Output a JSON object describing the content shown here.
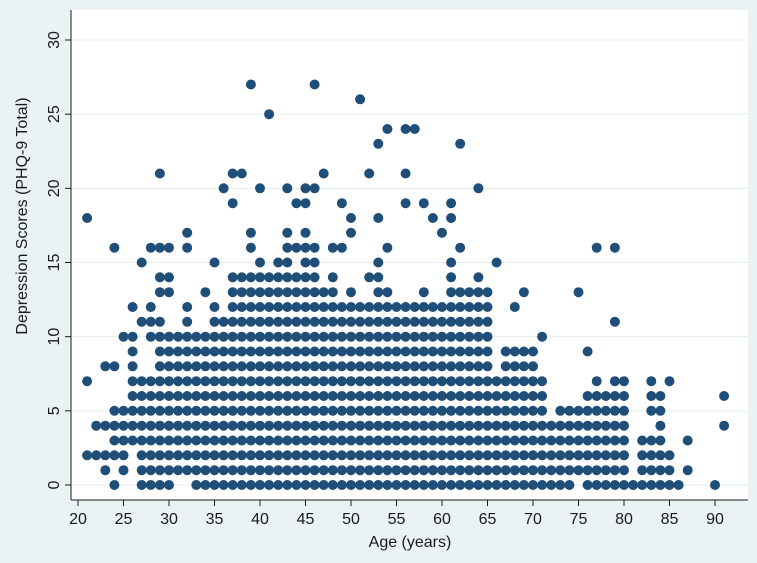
{
  "colors": {
    "background": "#eaf2f3",
    "plot_background": "#ffffff",
    "grid": "#e4ecee",
    "marker": "#1f4e79",
    "axis": "#1a1a1a"
  },
  "chart_data": {
    "type": "scatter",
    "title": "",
    "xlabel": "Age (years)",
    "ylabel": "Depression Scores (PHQ-9 Total)",
    "xlim": [
      20,
      91
    ],
    "ylim": [
      0,
      30
    ],
    "xticks": [
      20,
      25,
      30,
      35,
      40,
      45,
      50,
      55,
      60,
      65,
      70,
      75,
      80,
      85,
      90
    ],
    "yticks": [
      0,
      5,
      10,
      15,
      20,
      25,
      30
    ],
    "grid": true,
    "legend": "none",
    "series": [
      {
        "marker": "filled-circle",
        "column_ranges": [
          [
            21,
            [
              [
                2,
                2
              ],
              [
                7,
                7
              ],
              [
                18,
                18
              ]
            ]
          ],
          [
            22,
            [
              [
                2,
                2
              ],
              [
                4,
                4
              ]
            ]
          ],
          [
            23,
            [
              [
                1,
                2
              ],
              [
                4,
                4
              ],
              [
                8,
                8
              ]
            ]
          ],
          [
            24,
            [
              [
                0,
                0
              ],
              [
                2,
                5
              ],
              [
                8,
                8
              ],
              [
                16,
                16
              ]
            ]
          ],
          [
            25,
            [
              [
                1,
                5
              ],
              [
                10,
                10
              ]
            ]
          ],
          [
            26,
            [
              [
                3,
                10
              ],
              [
                12,
                12
              ]
            ]
          ],
          [
            27,
            [
              [
                0,
                7
              ],
              [
                11,
                11
              ],
              [
                15,
                15
              ]
            ]
          ],
          [
            28,
            [
              [
                0,
                7
              ],
              [
                10,
                12
              ],
              [
                16,
                16
              ]
            ]
          ],
          [
            29,
            [
              [
                0,
                11
              ],
              [
                13,
                14
              ],
              [
                16,
                16
              ],
              [
                21,
                21
              ]
            ]
          ],
          [
            30,
            [
              [
                0,
                10
              ],
              [
                13,
                14
              ],
              [
                16,
                16
              ]
            ]
          ],
          [
            31,
            [
              [
                1,
                10
              ]
            ]
          ],
          [
            32,
            [
              [
                1,
                12
              ],
              [
                16,
                17
              ]
            ]
          ],
          [
            33,
            [
              [
                0,
                10
              ]
            ]
          ],
          [
            34,
            [
              [
                0,
                10
              ],
              [
                13,
                13
              ]
            ]
          ],
          [
            35,
            [
              [
                0,
                12
              ],
              [
                15,
                15
              ]
            ]
          ],
          [
            36,
            [
              [
                0,
                11
              ],
              [
                20,
                20
              ]
            ]
          ],
          [
            37,
            [
              [
                0,
                14
              ],
              [
                19,
                19
              ],
              [
                21,
                21
              ]
            ]
          ],
          [
            38,
            [
              [
                0,
                14
              ],
              [
                21,
                21
              ]
            ]
          ],
          [
            39,
            [
              [
                0,
                14
              ],
              [
                16,
                17
              ],
              [
                27,
                27
              ]
            ]
          ],
          [
            40,
            [
              [
                0,
                15
              ],
              [
                20,
                20
              ]
            ]
          ],
          [
            41,
            [
              [
                0,
                14
              ],
              [
                25,
                25
              ]
            ]
          ],
          [
            42,
            [
              [
                0,
                15
              ]
            ]
          ],
          [
            43,
            [
              [
                0,
                17
              ],
              [
                20,
                20
              ]
            ]
          ],
          [
            44,
            [
              [
                0,
                14
              ],
              [
                16,
                16
              ],
              [
                19,
                19
              ]
            ]
          ],
          [
            45,
            [
              [
                0,
                17
              ],
              [
                19,
                20
              ]
            ]
          ],
          [
            46,
            [
              [
                0,
                16
              ],
              [
                20,
                20
              ],
              [
                27,
                27
              ]
            ]
          ],
          [
            47,
            [
              [
                0,
                13
              ],
              [
                21,
                21
              ]
            ]
          ],
          [
            48,
            [
              [
                0,
                14
              ],
              [
                16,
                16
              ]
            ]
          ],
          [
            49,
            [
              [
                0,
                12
              ],
              [
                16,
                16
              ],
              [
                19,
                19
              ]
            ]
          ],
          [
            50,
            [
              [
                0,
                13
              ],
              [
                17,
                18
              ]
            ]
          ],
          [
            51,
            [
              [
                0,
                12
              ],
              [
                26,
                26
              ]
            ]
          ],
          [
            52,
            [
              [
                0,
                12
              ],
              [
                14,
                14
              ],
              [
                21,
                21
              ]
            ]
          ],
          [
            53,
            [
              [
                0,
                15
              ],
              [
                18,
                18
              ],
              [
                23,
                23
              ]
            ]
          ],
          [
            54,
            [
              [
                0,
                13
              ],
              [
                16,
                16
              ],
              [
                24,
                24
              ]
            ]
          ],
          [
            55,
            [
              [
                0,
                12
              ]
            ]
          ],
          [
            56,
            [
              [
                0,
                12
              ],
              [
                19,
                19
              ],
              [
                21,
                21
              ],
              [
                24,
                24
              ]
            ]
          ],
          [
            57,
            [
              [
                0,
                12
              ],
              [
                24,
                24
              ]
            ]
          ],
          [
            58,
            [
              [
                0,
                13
              ],
              [
                19,
                19
              ]
            ]
          ],
          [
            59,
            [
              [
                0,
                12
              ],
              [
                18,
                18
              ]
            ]
          ],
          [
            60,
            [
              [
                0,
                12
              ],
              [
                17,
                17
              ]
            ]
          ],
          [
            61,
            [
              [
                0,
                15
              ],
              [
                18,
                19
              ]
            ]
          ],
          [
            62,
            [
              [
                0,
                13
              ],
              [
                16,
                16
              ],
              [
                23,
                23
              ]
            ]
          ],
          [
            63,
            [
              [
                0,
                13
              ]
            ]
          ],
          [
            64,
            [
              [
                0,
                14
              ],
              [
                20,
                20
              ]
            ]
          ],
          [
            65,
            [
              [
                0,
                13
              ]
            ]
          ],
          [
            66,
            [
              [
                0,
                7
              ],
              [
                15,
                15
              ]
            ]
          ],
          [
            67,
            [
              [
                0,
                9
              ]
            ]
          ],
          [
            68,
            [
              [
                0,
                9
              ],
              [
                12,
                12
              ]
            ]
          ],
          [
            69,
            [
              [
                0,
                9
              ],
              [
                13,
                13
              ]
            ]
          ],
          [
            70,
            [
              [
                0,
                9
              ]
            ]
          ],
          [
            71,
            [
              [
                0,
                7
              ],
              [
                10,
                10
              ]
            ]
          ],
          [
            72,
            [
              [
                0,
                4
              ]
            ]
          ],
          [
            73,
            [
              [
                0,
                5
              ]
            ]
          ],
          [
            74,
            [
              [
                0,
                5
              ]
            ]
          ],
          [
            75,
            [
              [
                1,
                5
              ],
              [
                13,
                13
              ]
            ]
          ],
          [
            76,
            [
              [
                0,
                6
              ],
              [
                9,
                9
              ]
            ]
          ],
          [
            77,
            [
              [
                0,
                7
              ],
              [
                16,
                16
              ]
            ]
          ],
          [
            78,
            [
              [
                0,
                6
              ]
            ]
          ],
          [
            79,
            [
              [
                0,
                7
              ],
              [
                11,
                11
              ],
              [
                16,
                16
              ]
            ]
          ],
          [
            80,
            [
              [
                0,
                7
              ]
            ]
          ],
          [
            81,
            [
              [
                0,
                0
              ]
            ]
          ],
          [
            82,
            [
              [
                0,
                3
              ]
            ]
          ],
          [
            83,
            [
              [
                0,
                3
              ],
              [
                5,
                7
              ]
            ]
          ],
          [
            84,
            [
              [
                0,
                6
              ]
            ]
          ],
          [
            85,
            [
              [
                0,
                2
              ],
              [
                7,
                7
              ]
            ]
          ],
          [
            86,
            [
              [
                0,
                0
              ]
            ]
          ],
          [
            87,
            [
              [
                1,
                1
              ],
              [
                3,
                3
              ]
            ]
          ],
          [
            90,
            [
              [
                0,
                0
              ]
            ]
          ],
          [
            91,
            [
              [
                4,
                4
              ],
              [
                6,
                6
              ]
            ]
          ]
        ]
      }
    ]
  }
}
